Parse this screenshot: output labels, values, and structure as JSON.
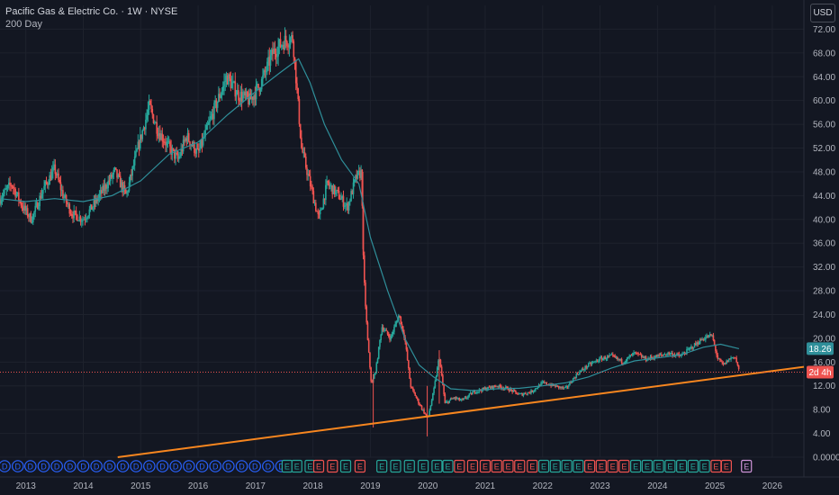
{
  "legend": {
    "title": "Pacific Gas & Electric Co. · 1W · NYSE",
    "ma_label": "200 Day"
  },
  "currency_label": "USD",
  "colors": {
    "background": "#131722",
    "grid": "#1e222d",
    "up": "#26a69a",
    "down": "#ef5350",
    "ma": "#2f8f9a",
    "trendline": "#f7861f",
    "price_line": "#ef5350"
  },
  "chart_data": {
    "type": "candlestick",
    "title": "Pacific Gas & Electric Co. · 1W · NYSE",
    "ylim": [
      0,
      76
    ],
    "xlim": [
      2012.55,
      2026.55
    ],
    "grid": true,
    "y_ticks": [
      "72.00",
      "68.00",
      "64.00",
      "60.00",
      "56.00",
      "52.00",
      "48.00",
      "44.00",
      "40.00",
      "36.00",
      "32.00",
      "28.00",
      "24.00",
      "20.00",
      "16.00",
      "12.00",
      "8.00",
      "4.00",
      "0.0000"
    ],
    "x_ticks": [
      "2013",
      "2014",
      "2015",
      "2016",
      "2017",
      "2018",
      "2019",
      "2020",
      "2021",
      "2022",
      "2023",
      "2024",
      "2025",
      "2026"
    ],
    "price_path": [
      [
        2012.55,
        43.5
      ],
      [
        2012.75,
        46
      ],
      [
        2012.95,
        42
      ],
      [
        2013.1,
        40
      ],
      [
        2013.3,
        45
      ],
      [
        2013.5,
        48.5
      ],
      [
        2013.65,
        44
      ],
      [
        2013.8,
        41
      ],
      [
        2014.0,
        40
      ],
      [
        2014.15,
        42
      ],
      [
        2014.35,
        45
      ],
      [
        2014.55,
        48
      ],
      [
        2014.75,
        44
      ],
      [
        2014.95,
        52
      ],
      [
        2015.15,
        59
      ],
      [
        2015.3,
        55
      ],
      [
        2015.5,
        52
      ],
      [
        2015.65,
        50
      ],
      [
        2015.8,
        54
      ],
      [
        2016.0,
        51
      ],
      [
        2016.15,
        55
      ],
      [
        2016.3,
        59
      ],
      [
        2016.5,
        64
      ],
      [
        2016.7,
        61
      ],
      [
        2016.9,
        60
      ],
      [
        2017.1,
        63
      ],
      [
        2017.3,
        68
      ],
      [
        2017.5,
        70
      ],
      [
        2017.65,
        70.5
      ],
      [
        2017.72,
        62
      ],
      [
        2017.8,
        52
      ],
      [
        2017.9,
        48
      ],
      [
        2018.0,
        44
      ],
      [
        2018.1,
        40
      ],
      [
        2018.25,
        46
      ],
      [
        2018.45,
        44
      ],
      [
        2018.6,
        42
      ],
      [
        2018.75,
        47
      ],
      [
        2018.85,
        48
      ],
      [
        2018.87,
        35
      ],
      [
        2018.9,
        28
      ],
      [
        2018.95,
        20
      ],
      [
        2019.02,
        12
      ],
      [
        2019.1,
        15
      ],
      [
        2019.2,
        22
      ],
      [
        2019.35,
        20
      ],
      [
        2019.5,
        24
      ],
      [
        2019.6,
        20
      ],
      [
        2019.7,
        12
      ],
      [
        2019.85,
        9
      ],
      [
        2020.0,
        6.5
      ],
      [
        2020.1,
        11
      ],
      [
        2020.2,
        17
      ],
      [
        2020.3,
        9
      ],
      [
        2020.45,
        10
      ],
      [
        2020.6,
        9.5
      ],
      [
        2020.8,
        11
      ],
      [
        2021.0,
        11.5
      ],
      [
        2021.2,
        12
      ],
      [
        2021.4,
        11.5
      ],
      [
        2021.6,
        10.5
      ],
      [
        2021.8,
        11
      ],
      [
        2022.0,
        12.5
      ],
      [
        2022.2,
        12
      ],
      [
        2022.4,
        11.5
      ],
      [
        2022.6,
        14
      ],
      [
        2022.8,
        15.5
      ],
      [
        2023.0,
        16.5
      ],
      [
        2023.2,
        17
      ],
      [
        2023.4,
        16
      ],
      [
        2023.6,
        17.5
      ],
      [
        2023.8,
        16.5
      ],
      [
        2024.0,
        17
      ],
      [
        2024.2,
        17.5
      ],
      [
        2024.4,
        17
      ],
      [
        2024.6,
        18.5
      ],
      [
        2024.8,
        20
      ],
      [
        2024.95,
        20.5
      ],
      [
        2025.05,
        16.5
      ],
      [
        2025.15,
        15.5
      ],
      [
        2025.25,
        16.5
      ],
      [
        2025.35,
        17
      ],
      [
        2025.42,
        14.5
      ]
    ],
    "moving_average": {
      "name": "200 Day",
      "points": [
        [
          2012.55,
          43.5
        ],
        [
          2013.0,
          43
        ],
        [
          2013.5,
          43.5
        ],
        [
          2014.0,
          43
        ],
        [
          2014.5,
          44
        ],
        [
          2015.0,
          46.5
        ],
        [
          2015.5,
          51
        ],
        [
          2016.0,
          53
        ],
        [
          2016.5,
          57.5
        ],
        [
          2017.0,
          61.5
        ],
        [
          2017.4,
          64.5
        ],
        [
          2017.75,
          67
        ],
        [
          2017.95,
          63
        ],
        [
          2018.2,
          56
        ],
        [
          2018.5,
          50
        ],
        [
          2018.8,
          46
        ],
        [
          2019.0,
          37
        ],
        [
          2019.3,
          28
        ],
        [
          2019.6,
          20
        ],
        [
          2019.85,
          15.5
        ],
        [
          2020.1,
          13.5
        ],
        [
          2020.4,
          11.5
        ],
        [
          2020.8,
          11.2
        ],
        [
          2021.2,
          11.5
        ],
        [
          2021.6,
          11.6
        ],
        [
          2022.0,
          12
        ],
        [
          2022.4,
          12.5
        ],
        [
          2022.8,
          13.5
        ],
        [
          2023.2,
          15
        ],
        [
          2023.6,
          16.2
        ],
        [
          2024.0,
          16.7
        ],
        [
          2024.4,
          17.2
        ],
        [
          2024.8,
          18.5
        ],
        [
          2025.1,
          19
        ],
        [
          2025.42,
          18.26
        ]
      ]
    },
    "trendline": {
      "start": [
        2014.6,
        0
      ],
      "end": [
        2026.55,
        15.2
      ]
    },
    "price_labels": [
      {
        "value": 18.26,
        "text": "18.26",
        "color": "#2f8f9a"
      },
      {
        "value": 14.3,
        "text": "2d 4h",
        "color": "#ef5350"
      }
    ],
    "event_badges": [
      {
        "x": 2012.63,
        "letter": "D",
        "kind": "dividend"
      },
      {
        "x": 2012.86,
        "letter": "D",
        "kind": "dividend"
      },
      {
        "x": 2013.08,
        "letter": "D",
        "kind": "dividend"
      },
      {
        "x": 2013.31,
        "letter": "D",
        "kind": "dividend"
      },
      {
        "x": 2013.54,
        "letter": "D",
        "kind": "dividend"
      },
      {
        "x": 2013.77,
        "letter": "D",
        "kind": "dividend"
      },
      {
        "x": 2014.0,
        "letter": "D",
        "kind": "dividend"
      },
      {
        "x": 2014.23,
        "letter": "D",
        "kind": "dividend"
      },
      {
        "x": 2014.46,
        "letter": "D",
        "kind": "dividend"
      },
      {
        "x": 2014.69,
        "letter": "D",
        "kind": "dividend"
      },
      {
        "x": 2014.92,
        "letter": "D",
        "kind": "dividend"
      },
      {
        "x": 2015.15,
        "letter": "D",
        "kind": "dividend"
      },
      {
        "x": 2015.38,
        "letter": "D",
        "kind": "dividend"
      },
      {
        "x": 2015.61,
        "letter": "D",
        "kind": "dividend"
      },
      {
        "x": 2015.84,
        "letter": "D",
        "kind": "dividend"
      },
      {
        "x": 2016.07,
        "letter": "D",
        "kind": "dividend"
      },
      {
        "x": 2016.3,
        "letter": "D",
        "kind": "dividend"
      },
      {
        "x": 2016.53,
        "letter": "D",
        "kind": "dividend"
      },
      {
        "x": 2016.76,
        "letter": "D",
        "kind": "dividend"
      },
      {
        "x": 2016.99,
        "letter": "D",
        "kind": "dividend"
      },
      {
        "x": 2017.22,
        "letter": "D",
        "kind": "dividend"
      },
      {
        "x": 2017.45,
        "letter": "D",
        "kind": "dividend"
      },
      {
        "x": 2017.55,
        "letter": "E",
        "kind": "earnings-up"
      },
      {
        "x": 2017.72,
        "letter": "E",
        "kind": "earnings-up"
      },
      {
        "x": 2017.95,
        "letter": "E",
        "kind": "earnings-up"
      },
      {
        "x": 2018.1,
        "letter": "E",
        "kind": "earnings-down"
      },
      {
        "x": 2018.34,
        "letter": "E",
        "kind": "earnings-down"
      },
      {
        "x": 2018.57,
        "letter": "E",
        "kind": "earnings-up"
      },
      {
        "x": 2018.82,
        "letter": "E",
        "kind": "earnings-down"
      },
      {
        "x": 2019.2,
        "letter": "E",
        "kind": "earnings-up"
      },
      {
        "x": 2019.44,
        "letter": "E",
        "kind": "earnings-up"
      },
      {
        "x": 2019.68,
        "letter": "E",
        "kind": "earnings-up"
      },
      {
        "x": 2019.92,
        "letter": "E",
        "kind": "earnings-up"
      },
      {
        "x": 2020.16,
        "letter": "E",
        "kind": "earnings-up"
      },
      {
        "x": 2020.35,
        "letter": "E",
        "kind": "earnings-up"
      },
      {
        "x": 2020.55,
        "letter": "E",
        "kind": "earnings-down"
      },
      {
        "x": 2020.78,
        "letter": "E",
        "kind": "earnings-down"
      },
      {
        "x": 2021.0,
        "letter": "E",
        "kind": "earnings-down"
      },
      {
        "x": 2021.2,
        "letter": "E",
        "kind": "earnings-down"
      },
      {
        "x": 2021.4,
        "letter": "E",
        "kind": "earnings-down"
      },
      {
        "x": 2021.6,
        "letter": "E",
        "kind": "earnings-down"
      },
      {
        "x": 2021.82,
        "letter": "E",
        "kind": "earnings-down"
      },
      {
        "x": 2022.02,
        "letter": "E",
        "kind": "earnings-up"
      },
      {
        "x": 2022.22,
        "letter": "E",
        "kind": "earnings-up"
      },
      {
        "x": 2022.42,
        "letter": "E",
        "kind": "earnings-up"
      },
      {
        "x": 2022.62,
        "letter": "E",
        "kind": "earnings-up"
      },
      {
        "x": 2022.82,
        "letter": "E",
        "kind": "earnings-down"
      },
      {
        "x": 2023.02,
        "letter": "E",
        "kind": "earnings-down"
      },
      {
        "x": 2023.22,
        "letter": "E",
        "kind": "earnings-down"
      },
      {
        "x": 2023.42,
        "letter": "E",
        "kind": "earnings-down"
      },
      {
        "x": 2023.62,
        "letter": "E",
        "kind": "earnings-up"
      },
      {
        "x": 2023.82,
        "letter": "E",
        "kind": "earnings-up"
      },
      {
        "x": 2024.02,
        "letter": "E",
        "kind": "earnings-up"
      },
      {
        "x": 2024.22,
        "letter": "E",
        "kind": "earnings-up"
      },
      {
        "x": 2024.42,
        "letter": "E",
        "kind": "earnings-up"
      },
      {
        "x": 2024.62,
        "letter": "E",
        "kind": "earnings-up"
      },
      {
        "x": 2024.82,
        "letter": "E",
        "kind": "earnings-up"
      },
      {
        "x": 2025.02,
        "letter": "E",
        "kind": "earnings-down"
      },
      {
        "x": 2025.2,
        "letter": "E",
        "kind": "earnings-down"
      },
      {
        "x": 2025.55,
        "letter": "E",
        "kind": "earnings-future"
      }
    ]
  }
}
